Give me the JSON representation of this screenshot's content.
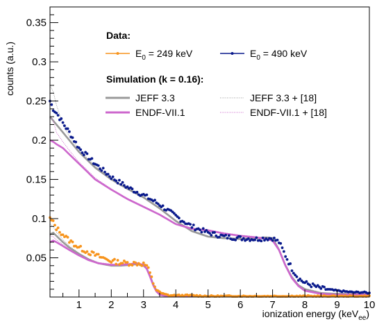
{
  "chart_data": {
    "type": "line",
    "title": "",
    "xlabel": "ionization energy (keVee)",
    "xlabel_parts": {
      "main": "ionization energy (keV",
      "sub": "ee",
      "close": ")"
    },
    "ylabel": "counts (a.u.)",
    "xlim": [
      0.1,
      10
    ],
    "ylim": [
      0,
      0.37
    ],
    "x_ticks": [
      1,
      2,
      3,
      4,
      5,
      6,
      7,
      8,
      9,
      10
    ],
    "y_ticks": [
      0.05,
      0.1,
      0.15,
      0.2,
      0.25,
      0.3,
      0.35
    ],
    "y_tick_labels": [
      "0.05",
      "0.1",
      "0.15",
      "0.2",
      "0.25",
      "0.3",
      "0.35"
    ],
    "grid": false,
    "legend": {
      "placement": "top-right",
      "data_header": "Data:",
      "sim_header": "Simulation (k = 0.16):",
      "entries": [
        {
          "label_main": "E",
          "label_sub": "0",
          "label_rest": " = 249 keV",
          "series": "data_249"
        },
        {
          "label_main": "E",
          "label_sub": "0",
          "label_rest": " = 490 keV",
          "series": "data_490"
        },
        {
          "label": "JEFF 3.3",
          "series": "jeff_490"
        },
        {
          "label": "JEFF 3.3 + [18]",
          "series": "jeff18_490"
        },
        {
          "label": "ENDF-VII.1",
          "series": "endf_490"
        },
        {
          "label": "ENDF-VII.1 + [18]",
          "series": "endf18_490"
        }
      ]
    },
    "colors": {
      "data_249": "#f7941d",
      "data_490": "#0a1a8c",
      "jeff": "#999999",
      "endf": "#cc66cc"
    },
    "series": [
      {
        "key": "data_490",
        "style": "points",
        "x": [
          0.1,
          0.2,
          0.3,
          0.5,
          0.7,
          1.0,
          1.5,
          2.0,
          2.5,
          3.0,
          3.5,
          4.0,
          4.5,
          5.0,
          5.5,
          6.0,
          6.5,
          6.8,
          7.0,
          7.2,
          7.4,
          7.6,
          7.8,
          8.0,
          8.5,
          9.0,
          9.5,
          9.8,
          10.0
        ],
        "y": [
          0.25,
          0.24,
          0.235,
          0.222,
          0.21,
          0.19,
          0.17,
          0.153,
          0.14,
          0.13,
          0.118,
          0.103,
          0.09,
          0.082,
          0.077,
          0.075,
          0.074,
          0.075,
          0.075,
          0.07,
          0.053,
          0.036,
          0.024,
          0.018,
          0.011,
          0.008,
          0.006,
          0.006,
          0.005
        ]
      },
      {
        "key": "data_249",
        "style": "points",
        "x": [
          0.1,
          0.2,
          0.3,
          0.5,
          0.7,
          1.0,
          1.3,
          1.6,
          2.0,
          2.3,
          2.6,
          2.8,
          3.0,
          3.1,
          3.2,
          3.3,
          3.4,
          3.5,
          3.6,
          3.7,
          3.8,
          4.0,
          4.5,
          5.0,
          6.0,
          7.0,
          8.0,
          9.0,
          10.0
        ],
        "y": [
          0.1,
          0.095,
          0.088,
          0.08,
          0.072,
          0.063,
          0.057,
          0.052,
          0.046,
          0.044,
          0.043,
          0.043,
          0.042,
          0.04,
          0.03,
          0.018,
          0.01,
          0.006,
          0.004,
          0.003,
          0.002,
          0.002,
          0.002,
          0.001,
          0.001,
          0.001,
          0.001,
          0.001,
          0.001
        ]
      },
      {
        "key": "jeff_490",
        "style": "line",
        "color_key": "jeff",
        "x": [
          0.1,
          0.2,
          0.3,
          0.5,
          0.7,
          1.0,
          1.5,
          2.0,
          2.5,
          3.0,
          3.5,
          4.0,
          4.5,
          5.0,
          5.5,
          6.0,
          6.5,
          6.8,
          7.0,
          7.2,
          7.4,
          7.6,
          7.8,
          8.0,
          8.5,
          9.0,
          10.0
        ],
        "y": [
          0.23,
          0.225,
          0.22,
          0.21,
          0.2,
          0.185,
          0.165,
          0.15,
          0.138,
          0.127,
          0.113,
          0.097,
          0.084,
          0.077,
          0.075,
          0.074,
          0.075,
          0.076,
          0.075,
          0.06,
          0.04,
          0.025,
          0.015,
          0.01,
          0.005,
          0.004,
          0.004
        ]
      },
      {
        "key": "jeff18_490",
        "style": "dotted",
        "color_key": "jeff",
        "x": [
          0.1,
          0.2,
          0.3,
          0.5,
          0.7,
          1.0,
          1.5,
          2.0,
          2.5,
          3.0,
          3.5,
          4.0,
          4.5,
          5.0,
          5.5,
          6.0,
          6.5,
          6.8,
          7.0,
          7.2,
          7.4,
          7.6,
          7.8,
          8.0,
          8.5,
          9.0,
          10.0
        ],
        "y": [
          0.27,
          0.262,
          0.245,
          0.22,
          0.205,
          0.188,
          0.167,
          0.151,
          0.139,
          0.128,
          0.114,
          0.098,
          0.085,
          0.078,
          0.076,
          0.075,
          0.076,
          0.077,
          0.076,
          0.062,
          0.042,
          0.027,
          0.016,
          0.011,
          0.006,
          0.004,
          0.004
        ]
      },
      {
        "key": "endf_490",
        "style": "line",
        "color_key": "endf",
        "x": [
          0.1,
          0.2,
          0.3,
          0.5,
          0.7,
          1.0,
          1.5,
          2.0,
          2.5,
          3.0,
          3.5,
          4.0,
          4.5,
          5.0,
          5.5,
          6.0,
          6.5,
          6.8,
          7.0,
          7.2,
          7.4,
          7.6,
          7.8,
          8.0,
          8.5,
          9.0,
          10.0
        ],
        "y": [
          0.2,
          0.198,
          0.195,
          0.19,
          0.182,
          0.17,
          0.15,
          0.137,
          0.125,
          0.115,
          0.105,
          0.093,
          0.087,
          0.085,
          0.081,
          0.078,
          0.076,
          0.074,
          0.072,
          0.06,
          0.04,
          0.024,
          0.014,
          0.008,
          0.004,
          0.003,
          0.003
        ]
      },
      {
        "key": "endf18_490",
        "style": "dotted",
        "color_key": "endf",
        "x": [
          0.1,
          0.2,
          0.3,
          0.5,
          0.7,
          1.0,
          1.5,
          2.0,
          2.5,
          3.0,
          3.5,
          4.0,
          4.5,
          5.0,
          5.5,
          6.0,
          6.5,
          6.8,
          7.0,
          7.2,
          7.4,
          7.6,
          7.8,
          8.0,
          8.5,
          9.0,
          10.0
        ],
        "y": [
          0.23,
          0.225,
          0.21,
          0.198,
          0.187,
          0.172,
          0.152,
          0.138,
          0.126,
          0.116,
          0.106,
          0.094,
          0.088,
          0.086,
          0.082,
          0.079,
          0.077,
          0.075,
          0.073,
          0.061,
          0.041,
          0.025,
          0.015,
          0.009,
          0.005,
          0.003,
          0.003
        ]
      },
      {
        "key": "jeff_249",
        "style": "line",
        "color_key": "jeff",
        "x": [
          0.1,
          0.2,
          0.3,
          0.5,
          0.7,
          1.0,
          1.3,
          1.6,
          2.0,
          2.3,
          2.6,
          2.8,
          3.0,
          3.1,
          3.2,
          3.3,
          3.4,
          3.5,
          3.6,
          3.8,
          4.0,
          5.0,
          6.0,
          8.0,
          10.0
        ],
        "y": [
          0.08,
          0.082,
          0.078,
          0.07,
          0.063,
          0.055,
          0.048,
          0.043,
          0.04,
          0.04,
          0.041,
          0.042,
          0.04,
          0.036,
          0.027,
          0.016,
          0.008,
          0.004,
          0.002,
          0.001,
          0.001,
          0.001,
          0.001,
          0.001,
          0.001
        ]
      },
      {
        "key": "jeff18_249",
        "style": "dotted",
        "color_key": "jeff",
        "x": [
          0.1,
          0.2,
          0.3,
          0.5,
          0.7,
          1.0,
          1.3,
          1.6,
          2.0,
          2.3,
          2.6,
          2.8,
          3.0,
          3.1,
          3.2,
          3.3,
          3.4,
          3.5,
          3.6,
          3.8,
          4.0,
          5.0,
          6.0,
          8.0,
          10.0
        ],
        "y": [
          0.093,
          0.09,
          0.083,
          0.073,
          0.065,
          0.056,
          0.049,
          0.044,
          0.041,
          0.041,
          0.042,
          0.042,
          0.041,
          0.037,
          0.028,
          0.017,
          0.009,
          0.004,
          0.002,
          0.001,
          0.001,
          0.001,
          0.001,
          0.001,
          0.001
        ]
      },
      {
        "key": "endf_249",
        "style": "line",
        "color_key": "endf",
        "x": [
          0.1,
          0.2,
          0.3,
          0.5,
          0.7,
          1.0,
          1.3,
          1.6,
          2.0,
          2.3,
          2.6,
          2.8,
          3.0,
          3.1,
          3.2,
          3.3,
          3.4,
          3.5,
          3.6,
          3.8,
          4.0,
          5.0,
          6.0,
          8.0,
          10.0
        ],
        "y": [
          0.07,
          0.072,
          0.07,
          0.065,
          0.06,
          0.053,
          0.047,
          0.043,
          0.041,
          0.041,
          0.042,
          0.043,
          0.041,
          0.036,
          0.026,
          0.015,
          0.007,
          0.003,
          0.002,
          0.001,
          0.001,
          0.001,
          0.001,
          0.001,
          0.001
        ]
      },
      {
        "key": "endf18_249",
        "style": "dotted",
        "color_key": "endf",
        "x": [
          0.1,
          0.2,
          0.3,
          0.5,
          0.7,
          1.0,
          1.3,
          1.6,
          2.0,
          2.3,
          2.6,
          2.8,
          3.0,
          3.1,
          3.2,
          3.3,
          3.4,
          3.5,
          3.6,
          3.8,
          4.0,
          5.0,
          6.0,
          8.0,
          10.0
        ],
        "y": [
          0.078,
          0.077,
          0.073,
          0.067,
          0.061,
          0.054,
          0.048,
          0.044,
          0.042,
          0.042,
          0.043,
          0.043,
          0.042,
          0.037,
          0.027,
          0.016,
          0.008,
          0.004,
          0.002,
          0.001,
          0.001,
          0.001,
          0.001,
          0.001,
          0.001
        ]
      }
    ]
  }
}
